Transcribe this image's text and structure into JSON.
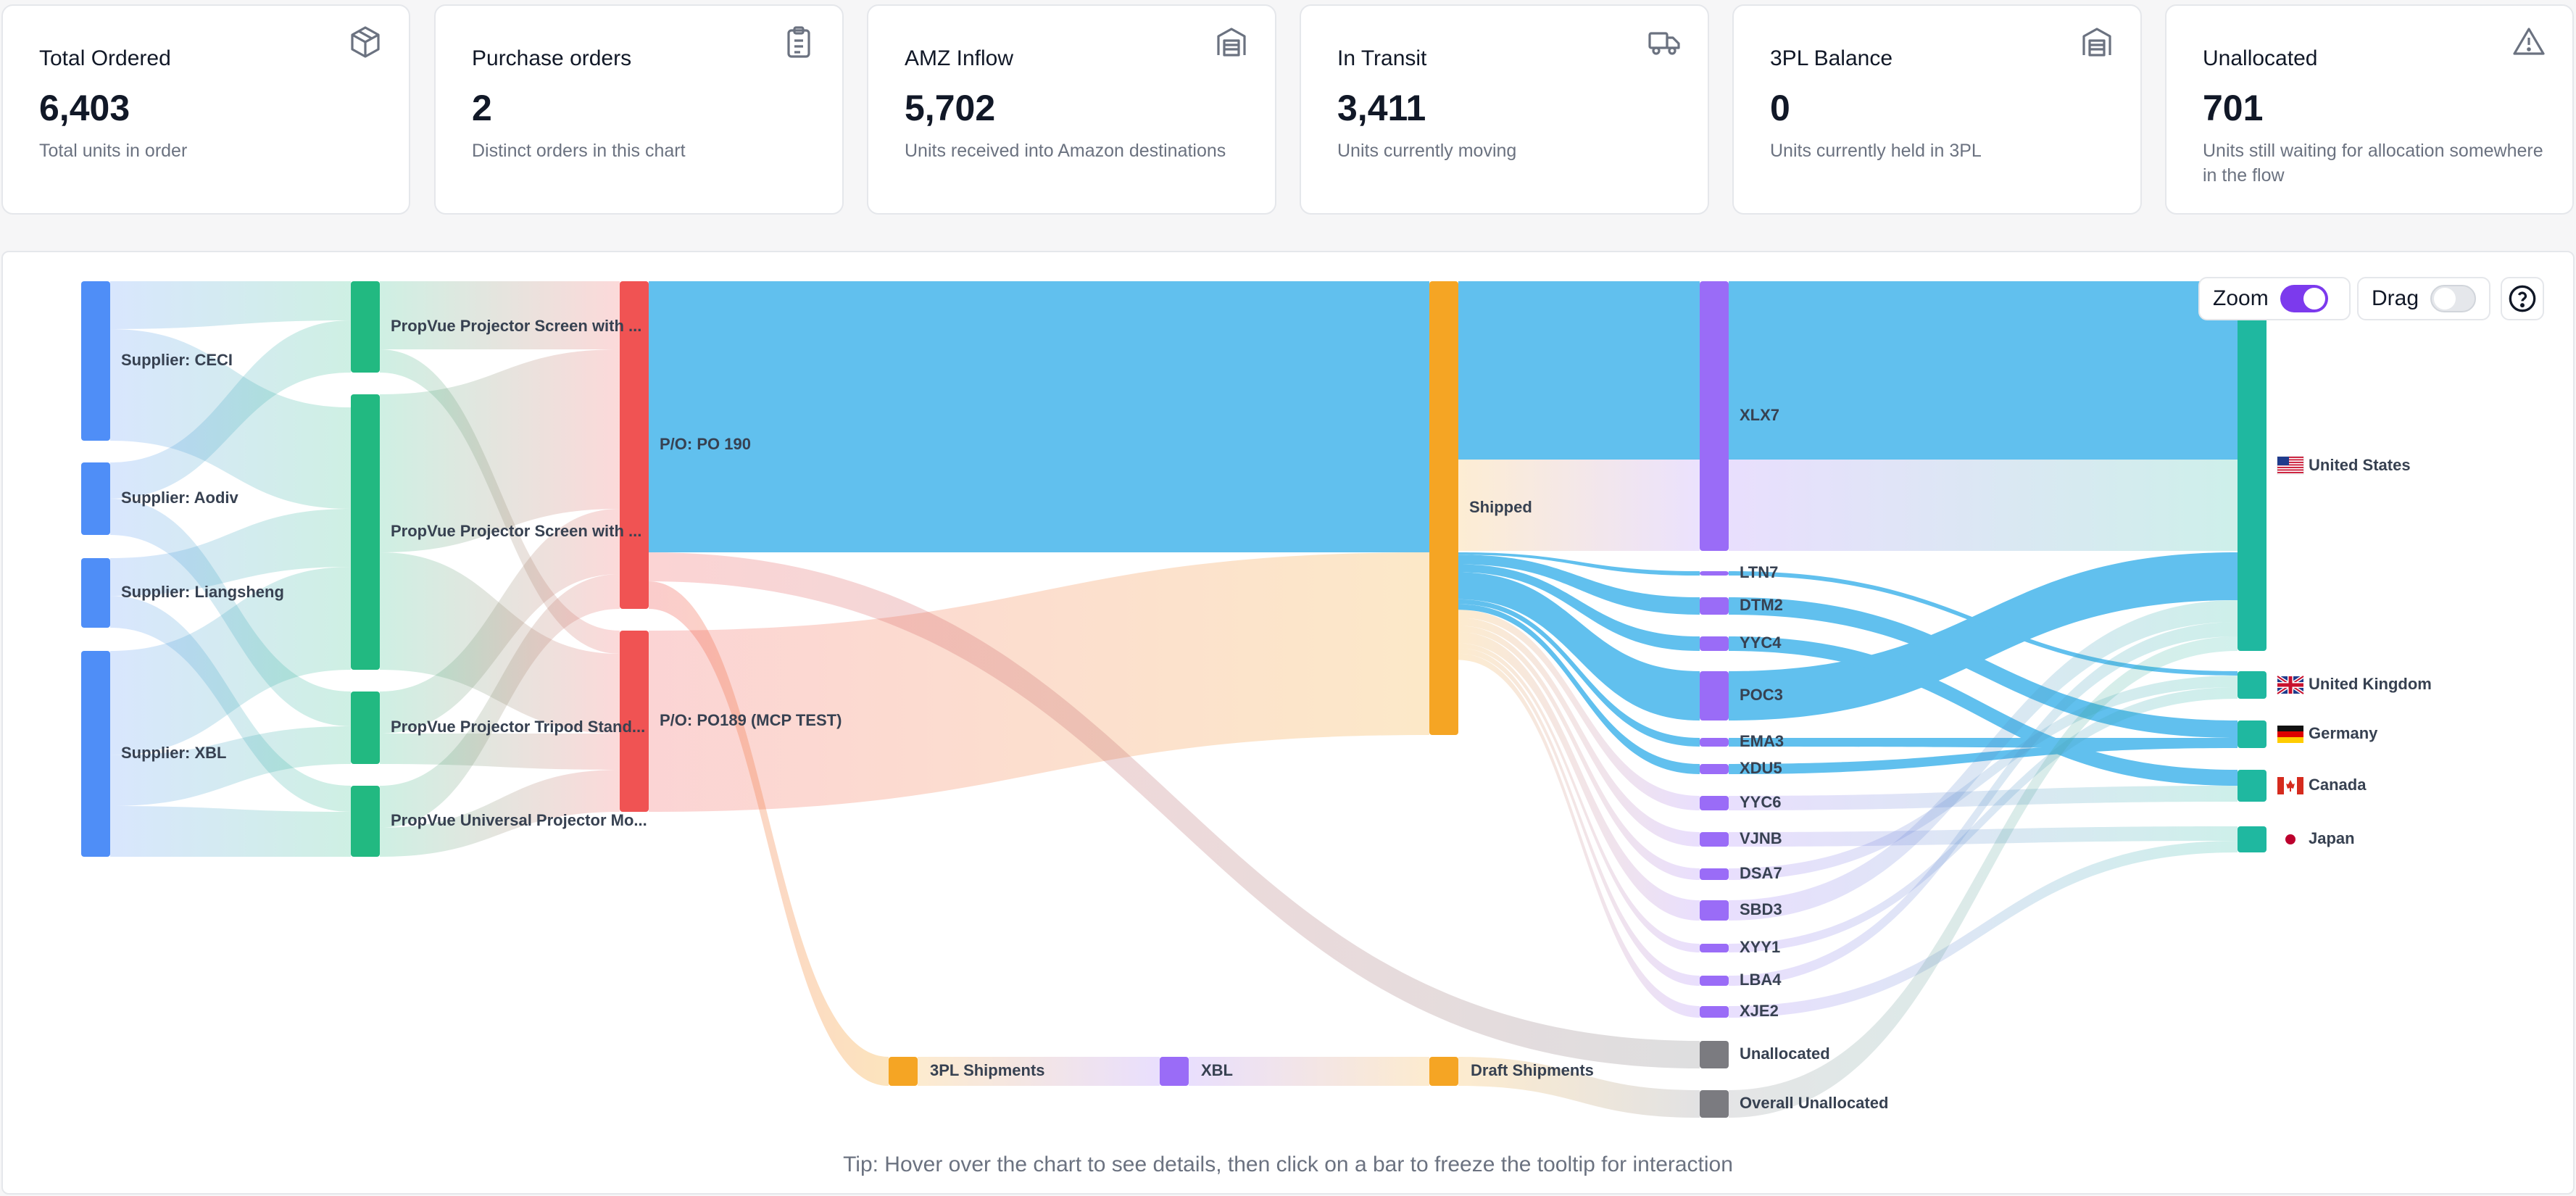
{
  "stats": {
    "total_ordered": {
      "title": "Total Ordered",
      "value": "6,403",
      "desc": "Total units in order",
      "icon": "package-icon"
    },
    "purchase_orders": {
      "title": "Purchase orders",
      "value": "2",
      "desc": "Distinct orders in this chart",
      "icon": "clipboard-icon"
    },
    "amz_inflow": {
      "title": "AMZ Inflow",
      "value": "5,702",
      "desc": "Units received into Amazon destinations",
      "icon": "warehouse-icon"
    },
    "in_transit": {
      "title": "In Transit",
      "value": "3,411",
      "desc": "Units currently moving",
      "icon": "truck-icon"
    },
    "threepl_balance": {
      "title": "3PL Balance",
      "value": "0",
      "desc": "Units currently held in 3PL",
      "icon": "warehouse-icon"
    },
    "unallocated": {
      "title": "Unallocated",
      "value": "701",
      "desc": "Units still waiting for allocation somewhere in the flow",
      "icon": "warning-icon"
    }
  },
  "controls": {
    "zoom_label": "Zoom",
    "zoom_on": true,
    "drag_label": "Drag",
    "drag_on": false
  },
  "tip": "Tip: Hover over the chart to see details, then click on a bar to freeze the tooltip for interaction",
  "colors": {
    "supplier": "#4f8ef7",
    "product": "#22b981",
    "po": "#f05353",
    "shipped": "#f5a524",
    "fc": "#9a6cf7",
    "country": "#1fb8a0",
    "unalloc": "#7b7b80",
    "flow_blue": "#61c0ee"
  },
  "nodes": {
    "suppliers": [
      "Supplier: CECI",
      "Supplier: Aodiv",
      "Supplier: Liangsheng",
      "Supplier: XBL"
    ],
    "products": [
      "PropVue Projector Screen with ...",
      "PropVue Projector Screen with ...",
      "PropVue Projector Tripod Stand...",
      "PropVue Universal Projector Mo..."
    ],
    "purchase_orders": [
      "P/O: PO 190",
      "P/O: PO189 (MCP TEST)"
    ],
    "shipped": "Shipped",
    "fulfillment_centers": [
      "XLX7",
      "LTN7",
      "DTM2",
      "YYC4",
      "POC3",
      "EMA3",
      "XDU5",
      "YYC6",
      "VJNB",
      "DSA7",
      "SBD3",
      "XYY1",
      "LBA4",
      "XJE2"
    ],
    "unallocated": [
      "Unallocated",
      "Overall Unallocated"
    ],
    "countries": [
      "United States",
      "United Kingdom",
      "Germany",
      "Canada",
      "Japan"
    ],
    "threepl": [
      "3PL Shipments",
      "XBL",
      "Draft Shipments"
    ]
  }
}
